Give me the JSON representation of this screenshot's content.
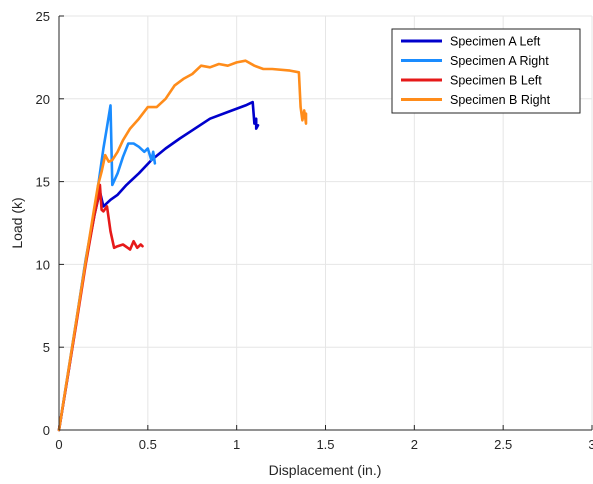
{
  "chart_data": {
    "type": "line",
    "title": "",
    "xlabel": "Displacement (in.)",
    "ylabel": "Load (k)",
    "xlim": [
      0,
      3
    ],
    "ylim": [
      0,
      25
    ],
    "xticks": [
      0,
      0.5,
      1,
      1.5,
      2,
      2.5,
      3
    ],
    "xtick_labels": [
      "0",
      "0.5",
      "1",
      "1.5",
      "2",
      "2.5",
      "3"
    ],
    "yticks": [
      0,
      5,
      10,
      15,
      20,
      25
    ],
    "ytick_labels": [
      "0",
      "5",
      "10",
      "15",
      "20",
      "25"
    ],
    "grid": true,
    "legend_position": "top-right",
    "series": [
      {
        "name": "Specimen A Left",
        "color": "#0000cc",
        "x": [
          0,
          0.05,
          0.1,
          0.15,
          0.2,
          0.23,
          0.25,
          0.27,
          0.29,
          0.33,
          0.38,
          0.45,
          0.52,
          0.6,
          0.68,
          0.75,
          0.85,
          0.95,
          1.05,
          1.09,
          1.1,
          1.11,
          1.11,
          1.12
        ],
        "y": [
          0,
          3.3,
          6.7,
          10.2,
          13.0,
          14.4,
          13.5,
          13.7,
          13.9,
          14.2,
          14.8,
          15.5,
          16.3,
          17.0,
          17.6,
          18.1,
          18.8,
          19.2,
          19.6,
          19.8,
          18.5,
          18.8,
          18.2,
          18.4
        ]
      },
      {
        "name": "Specimen A Right",
        "color": "#1a8cff",
        "x": [
          0,
          0.05,
          0.1,
          0.15,
          0.2,
          0.23,
          0.25,
          0.27,
          0.29,
          0.3,
          0.33,
          0.36,
          0.39,
          0.42,
          0.45,
          0.48,
          0.5,
          0.52,
          0.53,
          0.54
        ],
        "y": [
          0,
          3.4,
          6.8,
          10.3,
          13.2,
          15.5,
          17.0,
          18.3,
          19.6,
          14.8,
          15.5,
          16.5,
          17.3,
          17.3,
          17.1,
          16.8,
          17.0,
          16.3,
          16.8,
          16.1
        ]
      },
      {
        "name": "Specimen B Left",
        "color": "#e61919",
        "x": [
          0,
          0.05,
          0.1,
          0.15,
          0.2,
          0.22,
          0.23,
          0.24,
          0.25,
          0.27,
          0.29,
          0.31,
          0.33,
          0.36,
          0.4,
          0.42,
          0.44,
          0.46,
          0.47
        ],
        "y": [
          0,
          3.3,
          6.6,
          10.0,
          13.0,
          14.0,
          14.8,
          13.3,
          13.2,
          13.5,
          12.0,
          11.0,
          11.1,
          11.2,
          10.9,
          11.4,
          11.0,
          11.2,
          11.1
        ]
      },
      {
        "name": "Specimen B Right",
        "color": "#ff8c1a",
        "x": [
          0,
          0.05,
          0.1,
          0.15,
          0.2,
          0.22,
          0.24,
          0.26,
          0.28,
          0.3,
          0.33,
          0.36,
          0.4,
          0.45,
          0.5,
          0.55,
          0.6,
          0.65,
          0.7,
          0.75,
          0.8,
          0.85,
          0.9,
          0.95,
          1.0,
          1.05,
          1.1,
          1.15,
          1.2,
          1.3,
          1.35,
          1.36,
          1.37,
          1.38,
          1.39,
          1.39
        ],
        "y": [
          0,
          3.4,
          6.8,
          10.2,
          13.5,
          14.8,
          15.6,
          16.6,
          16.2,
          16.3,
          16.8,
          17.5,
          18.2,
          18.8,
          19.5,
          19.5,
          20.0,
          20.8,
          21.2,
          21.5,
          22.0,
          21.9,
          22.1,
          22.0,
          22.2,
          22.3,
          22.0,
          21.8,
          21.8,
          21.7,
          21.6,
          19.5,
          18.7,
          19.3,
          18.5,
          19.1
        ]
      }
    ]
  }
}
